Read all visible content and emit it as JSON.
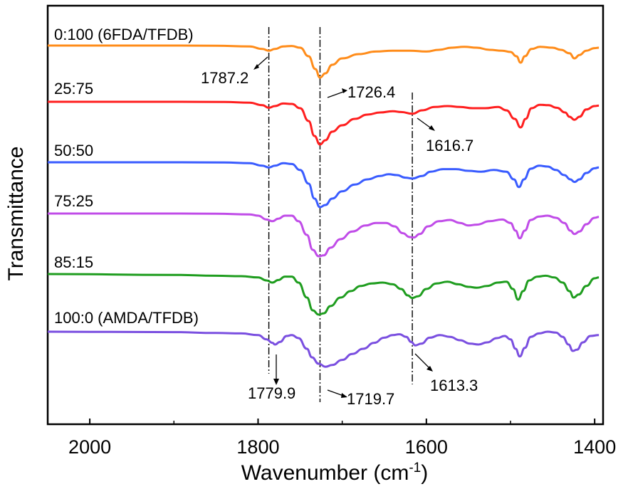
{
  "chart_data": {
    "type": "line",
    "title": "",
    "xlabel": "Wavenumber (cm",
    "xlabel_sup": "-1",
    "xlabel_close": ")",
    "ylabel": "Transmittance",
    "xlim": [
      2050,
      1390
    ],
    "x_reversed": true,
    "x_ticks": [
      2000,
      1800,
      1600,
      1400
    ],
    "x_tick_labels": [
      "2000",
      "1800",
      "1600",
      "1400"
    ],
    "y_ticks_shown": false,
    "grid": false,
    "series": [
      {
        "name": "0:100 (6FDA/TFDB)",
        "color": "#ff8c1a",
        "offset": 0,
        "points": [
          [
            2050,
            0
          ],
          [
            1900,
            0
          ],
          [
            1850,
            0.5
          ],
          [
            1810,
            2
          ],
          [
            1795,
            8
          ],
          [
            1787.2,
            12
          ],
          [
            1780,
            8
          ],
          [
            1770,
            2
          ],
          [
            1760,
            1
          ],
          [
            1750,
            5
          ],
          [
            1740,
            25
          ],
          [
            1732,
            55
          ],
          [
            1726.4,
            75
          ],
          [
            1720,
            65
          ],
          [
            1712,
            45
          ],
          [
            1700,
            30
          ],
          [
            1680,
            20
          ],
          [
            1660,
            14
          ],
          [
            1640,
            12
          ],
          [
            1620,
            12
          ],
          [
            1600,
            14
          ],
          [
            1585,
            10
          ],
          [
            1570,
            5
          ],
          [
            1555,
            3
          ],
          [
            1540,
            5
          ],
          [
            1525,
            10
          ],
          [
            1510,
            12
          ],
          [
            1500,
            15
          ],
          [
            1493,
            25
          ],
          [
            1488,
            40
          ],
          [
            1483,
            25
          ],
          [
            1475,
            8
          ],
          [
            1465,
            3
          ],
          [
            1450,
            5
          ],
          [
            1440,
            10
          ],
          [
            1430,
            18
          ],
          [
            1424,
            30
          ],
          [
            1418,
            22
          ],
          [
            1410,
            12
          ],
          [
            1400,
            6
          ],
          [
            1395,
            5
          ]
        ]
      },
      {
        "name": "25:75",
        "color": "#ff1f1f",
        "offset": 1,
        "points": [
          [
            2050,
            0
          ],
          [
            1900,
            0
          ],
          [
            1840,
            0.5
          ],
          [
            1810,
            2
          ],
          [
            1795,
            8
          ],
          [
            1787.2,
            14
          ],
          [
            1780,
            10
          ],
          [
            1770,
            4
          ],
          [
            1760,
            5
          ],
          [
            1750,
            15
          ],
          [
            1740,
            45
          ],
          [
            1733,
            80
          ],
          [
            1726.4,
            100
          ],
          [
            1720,
            90
          ],
          [
            1712,
            70
          ],
          [
            1700,
            55
          ],
          [
            1685,
            40
          ],
          [
            1670,
            30
          ],
          [
            1655,
            25
          ],
          [
            1640,
            22
          ],
          [
            1630,
            24
          ],
          [
            1616.7,
            28
          ],
          [
            1605,
            20
          ],
          [
            1590,
            12
          ],
          [
            1575,
            10
          ],
          [
            1560,
            12
          ],
          [
            1545,
            15
          ],
          [
            1530,
            15
          ],
          [
            1515,
            12
          ],
          [
            1505,
            20
          ],
          [
            1495,
            40
          ],
          [
            1488,
            60
          ],
          [
            1482,
            40
          ],
          [
            1475,
            15
          ],
          [
            1465,
            7
          ],
          [
            1455,
            8
          ],
          [
            1445,
            14
          ],
          [
            1435,
            25
          ],
          [
            1430,
            35
          ],
          [
            1424,
            42
          ],
          [
            1418,
            35
          ],
          [
            1410,
            18
          ],
          [
            1400,
            10
          ],
          [
            1395,
            9
          ]
        ]
      },
      {
        "name": "50:50",
        "color": "#3a5cff",
        "offset": 2,
        "points": [
          [
            2050,
            0
          ],
          [
            1900,
            0
          ],
          [
            1840,
            0.5
          ],
          [
            1810,
            2
          ],
          [
            1795,
            8
          ],
          [
            1787.2,
            12
          ],
          [
            1780,
            8
          ],
          [
            1770,
            2
          ],
          [
            1760,
            4
          ],
          [
            1750,
            18
          ],
          [
            1740,
            50
          ],
          [
            1733,
            85
          ],
          [
            1726.4,
            105
          ],
          [
            1720,
            100
          ],
          [
            1712,
            85
          ],
          [
            1700,
            68
          ],
          [
            1685,
            52
          ],
          [
            1670,
            40
          ],
          [
            1655,
            32
          ],
          [
            1645,
            28
          ],
          [
            1635,
            30
          ],
          [
            1625,
            36
          ],
          [
            1616.7,
            38
          ],
          [
            1605,
            32
          ],
          [
            1595,
            22
          ],
          [
            1580,
            16
          ],
          [
            1565,
            16
          ],
          [
            1550,
            20
          ],
          [
            1535,
            22
          ],
          [
            1520,
            18
          ],
          [
            1505,
            22
          ],
          [
            1496,
            40
          ],
          [
            1490,
            58
          ],
          [
            1484,
            40
          ],
          [
            1476,
            15
          ],
          [
            1466,
            8
          ],
          [
            1456,
            10
          ],
          [
            1446,
            18
          ],
          [
            1436,
            30
          ],
          [
            1429,
            40
          ],
          [
            1424,
            46
          ],
          [
            1418,
            40
          ],
          [
            1410,
            25
          ],
          [
            1400,
            14
          ],
          [
            1395,
            12
          ]
        ]
      },
      {
        "name": "75:25",
        "color": "#c04ce8",
        "offset": 3,
        "points": [
          [
            2050,
            0
          ],
          [
            1900,
            0
          ],
          [
            1850,
            0.5
          ],
          [
            1810,
            2
          ],
          [
            1800,
            5
          ],
          [
            1790,
            14
          ],
          [
            1783,
            18
          ],
          [
            1776,
            12
          ],
          [
            1768,
            5
          ],
          [
            1760,
            5
          ],
          [
            1752,
            18
          ],
          [
            1742,
            50
          ],
          [
            1735,
            85
          ],
          [
            1728,
            100
          ],
          [
            1722,
            98
          ],
          [
            1714,
            80
          ],
          [
            1702,
            60
          ],
          [
            1688,
            42
          ],
          [
            1672,
            28
          ],
          [
            1660,
            22
          ],
          [
            1648,
            22
          ],
          [
            1638,
            30
          ],
          [
            1628,
            46
          ],
          [
            1620,
            55
          ],
          [
            1615,
            56
          ],
          [
            1608,
            48
          ],
          [
            1598,
            30
          ],
          [
            1585,
            18
          ],
          [
            1572,
            15
          ],
          [
            1560,
            22
          ],
          [
            1550,
            28
          ],
          [
            1540,
            26
          ],
          [
            1525,
            18
          ],
          [
            1510,
            14
          ],
          [
            1500,
            22
          ],
          [
            1494,
            40
          ],
          [
            1489,
            58
          ],
          [
            1483,
            40
          ],
          [
            1476,
            15
          ],
          [
            1466,
            7
          ],
          [
            1456,
            5
          ],
          [
            1446,
            10
          ],
          [
            1436,
            22
          ],
          [
            1429,
            40
          ],
          [
            1424,
            48
          ],
          [
            1418,
            42
          ],
          [
            1410,
            25
          ],
          [
            1400,
            10
          ],
          [
            1395,
            8
          ]
        ]
      },
      {
        "name": "85:15",
        "color": "#1f9d1f",
        "offset": 4,
        "points": [
          [
            2050,
            0
          ],
          [
            1900,
            2
          ],
          [
            1850,
            4
          ],
          [
            1820,
            5
          ],
          [
            1800,
            8
          ],
          [
            1790,
            15
          ],
          [
            1783,
            20
          ],
          [
            1776,
            14
          ],
          [
            1768,
            6
          ],
          [
            1760,
            6
          ],
          [
            1752,
            20
          ],
          [
            1742,
            55
          ],
          [
            1735,
            85
          ],
          [
            1728,
            95
          ],
          [
            1722,
            92
          ],
          [
            1714,
            75
          ],
          [
            1702,
            55
          ],
          [
            1690,
            40
          ],
          [
            1678,
            28
          ],
          [
            1665,
            22
          ],
          [
            1652,
            20
          ],
          [
            1640,
            24
          ],
          [
            1630,
            35
          ],
          [
            1622,
            50
          ],
          [
            1617,
            56
          ],
          [
            1610,
            52
          ],
          [
            1600,
            35
          ],
          [
            1588,
            22
          ],
          [
            1575,
            18
          ],
          [
            1562,
            24
          ],
          [
            1550,
            30
          ],
          [
            1540,
            32
          ],
          [
            1528,
            28
          ],
          [
            1515,
            20
          ],
          [
            1505,
            18
          ],
          [
            1497,
            35
          ],
          [
            1491,
            60
          ],
          [
            1485,
            40
          ],
          [
            1478,
            15
          ],
          [
            1468,
            6
          ],
          [
            1458,
            4
          ],
          [
            1448,
            8
          ],
          [
            1438,
            20
          ],
          [
            1430,
            40
          ],
          [
            1425,
            55
          ],
          [
            1419,
            48
          ],
          [
            1410,
            28
          ],
          [
            1400,
            10
          ],
          [
            1395,
            8
          ]
        ]
      },
      {
        "name": "100:0 (AMDA/TFDB)",
        "color": "#7a4fe0",
        "offset": 5,
        "points": [
          [
            2050,
            0
          ],
          [
            1900,
            1
          ],
          [
            1850,
            3
          ],
          [
            1820,
            4
          ],
          [
            1800,
            8
          ],
          [
            1790,
            18
          ],
          [
            1783,
            26
          ],
          [
            1779.9,
            30
          ],
          [
            1774,
            24
          ],
          [
            1766,
            10
          ],
          [
            1760,
            8
          ],
          [
            1752,
            15
          ],
          [
            1742,
            40
          ],
          [
            1736,
            60
          ],
          [
            1728,
            75
          ],
          [
            1719.7,
            82
          ],
          [
            1712,
            78
          ],
          [
            1700,
            66
          ],
          [
            1688,
            52
          ],
          [
            1675,
            40
          ],
          [
            1662,
            26
          ],
          [
            1650,
            14
          ],
          [
            1640,
            8
          ],
          [
            1632,
            6
          ],
          [
            1624,
            12
          ],
          [
            1618,
            24
          ],
          [
            1613.3,
            32
          ],
          [
            1606,
            28
          ],
          [
            1596,
            14
          ],
          [
            1584,
            8
          ],
          [
            1572,
            12
          ],
          [
            1560,
            20
          ],
          [
            1548,
            28
          ],
          [
            1538,
            30
          ],
          [
            1528,
            25
          ],
          [
            1516,
            15
          ],
          [
            1507,
            10
          ],
          [
            1500,
            18
          ],
          [
            1494,
            40
          ],
          [
            1489,
            58
          ],
          [
            1483,
            38
          ],
          [
            1476,
            12
          ],
          [
            1466,
            4
          ],
          [
            1456,
            0
          ],
          [
            1446,
            2
          ],
          [
            1438,
            12
          ],
          [
            1431,
            30
          ],
          [
            1426,
            45
          ],
          [
            1421,
            42
          ],
          [
            1414,
            25
          ],
          [
            1405,
            10
          ],
          [
            1395,
            8
          ]
        ]
      }
    ],
    "annotations": [
      {
        "label": "1787.2",
        "x": 1787.2
      },
      {
        "label": "1726.4",
        "x": 1726.4
      },
      {
        "label": "1616.7",
        "x": 1616.7
      },
      {
        "label": "1779.9",
        "x": 1779.9
      },
      {
        "label": "1719.7",
        "x": 1719.7
      },
      {
        "label": "1613.3",
        "x": 1613.3
      }
    ],
    "reference_lines_x": [
      1787.2,
      1726.4,
      1616.7
    ]
  }
}
